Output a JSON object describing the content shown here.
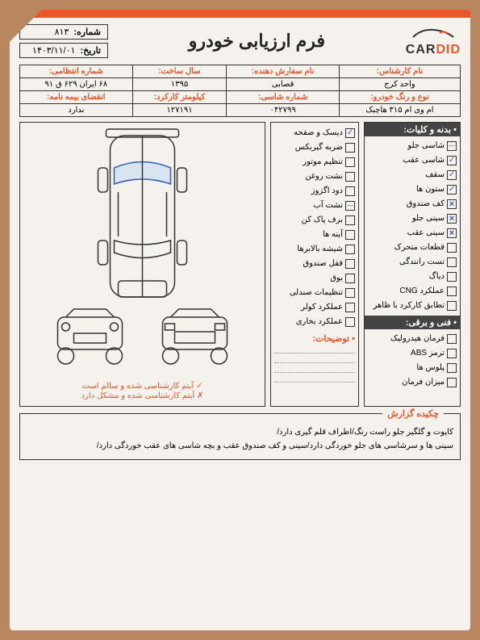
{
  "brand": {
    "car": "CAR",
    "did": "DID"
  },
  "form_title": "فرم ارزیابی خودرو",
  "meta": {
    "number_label": "شماره:",
    "number_value": "۸۱۳",
    "date_label": "تاریخ:",
    "date_value": "۱۴۰۳/۱۱/۰۱"
  },
  "info": {
    "headers_row1": [
      "نام کارشناس:",
      "نام سفارش دهنده:",
      "سال ساخت:",
      "شماره انتظامی:"
    ],
    "values_row1": [
      "واحد کرج",
      "قصابی",
      "۱۳۹۵",
      "۶۸ ایران ۶۲۹ ق ۹۱"
    ],
    "headers_row2": [
      "نوع و رنگ خودرو:",
      "شماره شاسی:",
      "کیلومتر کارکرد:",
      "انقضای بیمه نامه:"
    ],
    "values_row2": [
      "ام وی ام ۳۱۵ هاچبک",
      "۰۴۲۷۹۹",
      "۱۲۷۱۹۱",
      "ندارد"
    ]
  },
  "right_col": {
    "section1_title": "• بدنه و کلیات:",
    "items1": [
      {
        "label": "شاسی جلو",
        "mark": "dash"
      },
      {
        "label": "شاسی عقب",
        "mark": "check"
      },
      {
        "label": "سقف",
        "mark": "check"
      },
      {
        "label": "ستون ها",
        "mark": "check"
      },
      {
        "label": "کف صندوق",
        "mark": "x"
      },
      {
        "label": "سینی جلو",
        "mark": "x"
      },
      {
        "label": "سینی عقب",
        "mark": "x"
      },
      {
        "label": "قطعات متحرک",
        "mark": ""
      },
      {
        "label": "تست رانندگی",
        "mark": ""
      },
      {
        "label": "دیاگ",
        "mark": ""
      },
      {
        "label": "عملکرد CNG",
        "mark": ""
      },
      {
        "label": "تطابق کارکرد با ظاهر",
        "mark": ""
      }
    ],
    "section2_title": "• فنی و برقی:",
    "items2": [
      {
        "label": "فرمان هیدرولیک"
      },
      {
        "label": "ترمز ABS"
      },
      {
        "label": "پلوس ها"
      },
      {
        "label": "میزان فرمان"
      }
    ]
  },
  "mid_col": {
    "items": [
      {
        "label": "دیسک و صفحه",
        "mark": "check"
      },
      {
        "label": "ضربه گیربکس",
        "mark": ""
      },
      {
        "label": "تنظیم موتور",
        "mark": ""
      },
      {
        "label": "نشت روغن",
        "mark": ""
      },
      {
        "label": "دود اگزوز",
        "mark": ""
      },
      {
        "label": "نشت آب",
        "mark": "dash"
      },
      {
        "label": "برف پاک کن",
        "mark": ""
      },
      {
        "label": "آینه ها",
        "mark": ""
      },
      {
        "label": "شیشه بالابرها",
        "mark": ""
      },
      {
        "label": "قفل صندوق",
        "mark": ""
      },
      {
        "label": "بوق",
        "mark": ""
      },
      {
        "label": "تنظیمات صندلی",
        "mark": ""
      },
      {
        "label": "عملکرد کولر",
        "mark": ""
      },
      {
        "label": "عملکرد بخاری",
        "mark": ""
      }
    ],
    "notes_title": "• توضیحات:"
  },
  "legend": {
    "ok": "✓ آیتم کارشناسی شده و سالم است",
    "bad": "✗ آیتم کارشناسی شده و مشکل دارد"
  },
  "summary": {
    "title": "چکیده گزارش",
    "line1": "کاپوت و گلگیر جلو راست رنگ/اطراف قلم گیری دارد/",
    "line2": "سینی ها و سرشاسی های جلو خوردگی دارد/سینی و کف صندوق عقب و بچه شاسی های عقب خوردگی دارد/"
  },
  "colors": {
    "accent": "#e8562a",
    "ink": "#333333",
    "pen": "#2a5fb8",
    "paper": "#f5f2ed",
    "desk": "#b8865f"
  }
}
